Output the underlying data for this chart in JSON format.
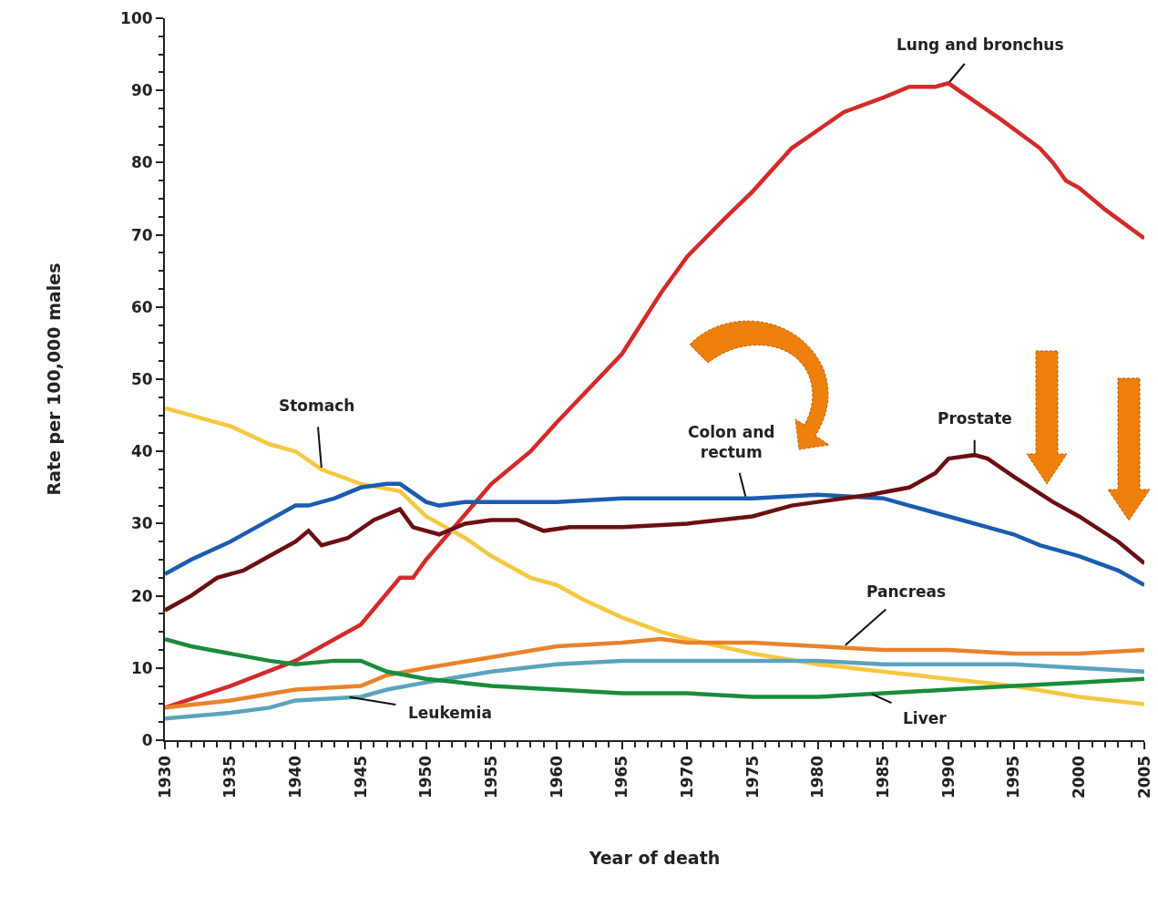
{
  "chart_data": {
    "type": "line",
    "xlabel": "Year of death",
    "ylabel": "Rate per 100,000 males",
    "xlim": [
      1930,
      2005
    ],
    "xticks": [
      1930,
      1935,
      1940,
      1945,
      1950,
      1955,
      1960,
      1965,
      1970,
      1975,
      1980,
      1985,
      1990,
      1995,
      2000,
      2005
    ],
    "ylim": [
      0,
      100
    ],
    "yticks": [
      0,
      10,
      20,
      30,
      40,
      50,
      60,
      70,
      80,
      90,
      100
    ],
    "grid": false,
    "marker": "none",
    "line_style": "solid",
    "series": [
      {
        "color": "#d42a2a",
        "x": [
          1930,
          1935,
          1940,
          1945,
          1948,
          1949,
          1950,
          1955,
          1958,
          1960,
          1965,
          1968,
          1970,
          1973,
          1975,
          1978,
          1980,
          1982,
          1985,
          1987,
          1989,
          1990,
          1992,
          1994,
          1997,
          1998,
          1999,
          2000,
          2002,
          2005
        ],
        "values": [
          4.5,
          7.5,
          11,
          16,
          22.5,
          22.5,
          25,
          35.5,
          40,
          44,
          53.5,
          62,
          67,
          72.5,
          76,
          82,
          84.5,
          87,
          89,
          90.5,
          90.5,
          91,
          88.5,
          86,
          82,
          80,
          77.5,
          76.5,
          73.5,
          69.5
        ]
      },
      {
        "color": "#f5c842",
        "x": [
          1930,
          1933,
          1935,
          1938,
          1940,
          1942,
          1945,
          1948,
          1950,
          1953,
          1955,
          1958,
          1960,
          1962,
          1965,
          1968,
          1970,
          1975,
          1980,
          1985,
          1990,
          1995,
          2000,
          2005
        ],
        "values": [
          46,
          44.5,
          43.5,
          41,
          40,
          37.5,
          35.5,
          34.5,
          31,
          28,
          25.5,
          22.5,
          21.5,
          19.5,
          17,
          15,
          14,
          12,
          10.5,
          9.5,
          8.5,
          7.5,
          6,
          5
        ]
      },
      {
        "color": "#1a5cb0",
        "x": [
          1930,
          1932,
          1935,
          1937,
          1940,
          1941,
          1943,
          1945,
          1947,
          1948,
          1950,
          1951,
          1953,
          1955,
          1960,
          1965,
          1970,
          1975,
          1980,
          1985,
          1987,
          1990,
          1993,
          1995,
          1997,
          2000,
          2003,
          2005
        ],
        "values": [
          23,
          25,
          27.5,
          29.5,
          32.5,
          32.5,
          33.5,
          35,
          35.5,
          35.5,
          33,
          32.5,
          33,
          33,
          33,
          33.5,
          33.5,
          33.5,
          34,
          33.5,
          32.5,
          31,
          29.5,
          28.5,
          27,
          25.5,
          23.5,
          21.5
        ]
      },
      {
        "color": "#6b0f12",
        "x": [
          1930,
          1932,
          1934,
          1936,
          1938,
          1940,
          1941,
          1942,
          1944,
          1946,
          1948,
          1949,
          1951,
          1953,
          1955,
          1957,
          1959,
          1961,
          1965,
          1970,
          1975,
          1978,
          1980,
          1984,
          1987,
          1989,
          1990,
          1992,
          1993,
          1995,
          1998,
          2000,
          2003,
          2005
        ],
        "values": [
          18,
          20,
          22.5,
          23.5,
          25.5,
          27.5,
          29,
          27,
          28,
          30.5,
          32,
          29.5,
          28.5,
          30,
          30.5,
          30.5,
          29,
          29.5,
          29.5,
          30,
          31,
          32.5,
          33,
          34,
          35,
          37,
          39,
          39.5,
          39,
          36.5,
          33,
          31,
          27.5,
          24.5
        ]
      },
      {
        "color": "#e8822a",
        "x": [
          1930,
          1935,
          1940,
          1945,
          1947,
          1950,
          1955,
          1960,
          1965,
          1968,
          1970,
          1975,
          1980,
          1985,
          1990,
          1995,
          2000,
          2005
        ],
        "values": [
          4.5,
          5.5,
          7,
          7.5,
          9,
          10,
          11.5,
          13,
          13.5,
          14,
          13.5,
          13.5,
          13,
          12.5,
          12.5,
          12,
          12,
          12.5
        ]
      },
      {
        "color": "#5ba3bd",
        "x": [
          1930,
          1935,
          1938,
          1940,
          1945,
          1947,
          1950,
          1955,
          1960,
          1965,
          1970,
          1975,
          1980,
          1985,
          1990,
          1995,
          2000,
          2005
        ],
        "values": [
          3,
          3.8,
          4.5,
          5.5,
          6,
          7,
          8,
          9.5,
          10.5,
          11,
          11,
          11,
          11,
          10.5,
          10.5,
          10.5,
          10,
          9.5
        ]
      },
      {
        "color": "#1a8c3a",
        "x": [
          1930,
          1932,
          1935,
          1938,
          1940,
          1943,
          1945,
          1947,
          1950,
          1955,
          1960,
          1965,
          1970,
          1975,
          1980,
          1985,
          1990,
          1995,
          2000,
          2005
        ],
        "values": [
          14,
          13,
          12,
          11,
          10.5,
          11,
          11,
          9.5,
          8.5,
          7.5,
          7,
          6.5,
          6.5,
          6,
          6,
          6.5,
          7,
          7.5,
          8,
          8.5
        ]
      }
    ],
    "annotations": [
      {
        "text": "Lung and bronchus",
        "x": 1990,
        "y": 91
      },
      {
        "text": "Stomach",
        "x": 1942,
        "y": 37.5
      },
      {
        "text": "Colon and rectum",
        "x": 1974.5,
        "y": 33.5
      },
      {
        "text": "Prostate",
        "x": 1992,
        "y": 39.5
      },
      {
        "text": "Pancreas",
        "x": 1982,
        "y": 13
      },
      {
        "text": "Leukemia",
        "x": 1944,
        "y": 6
      },
      {
        "text": "Liver",
        "x": 1984,
        "y": 6.5
      }
    ]
  }
}
